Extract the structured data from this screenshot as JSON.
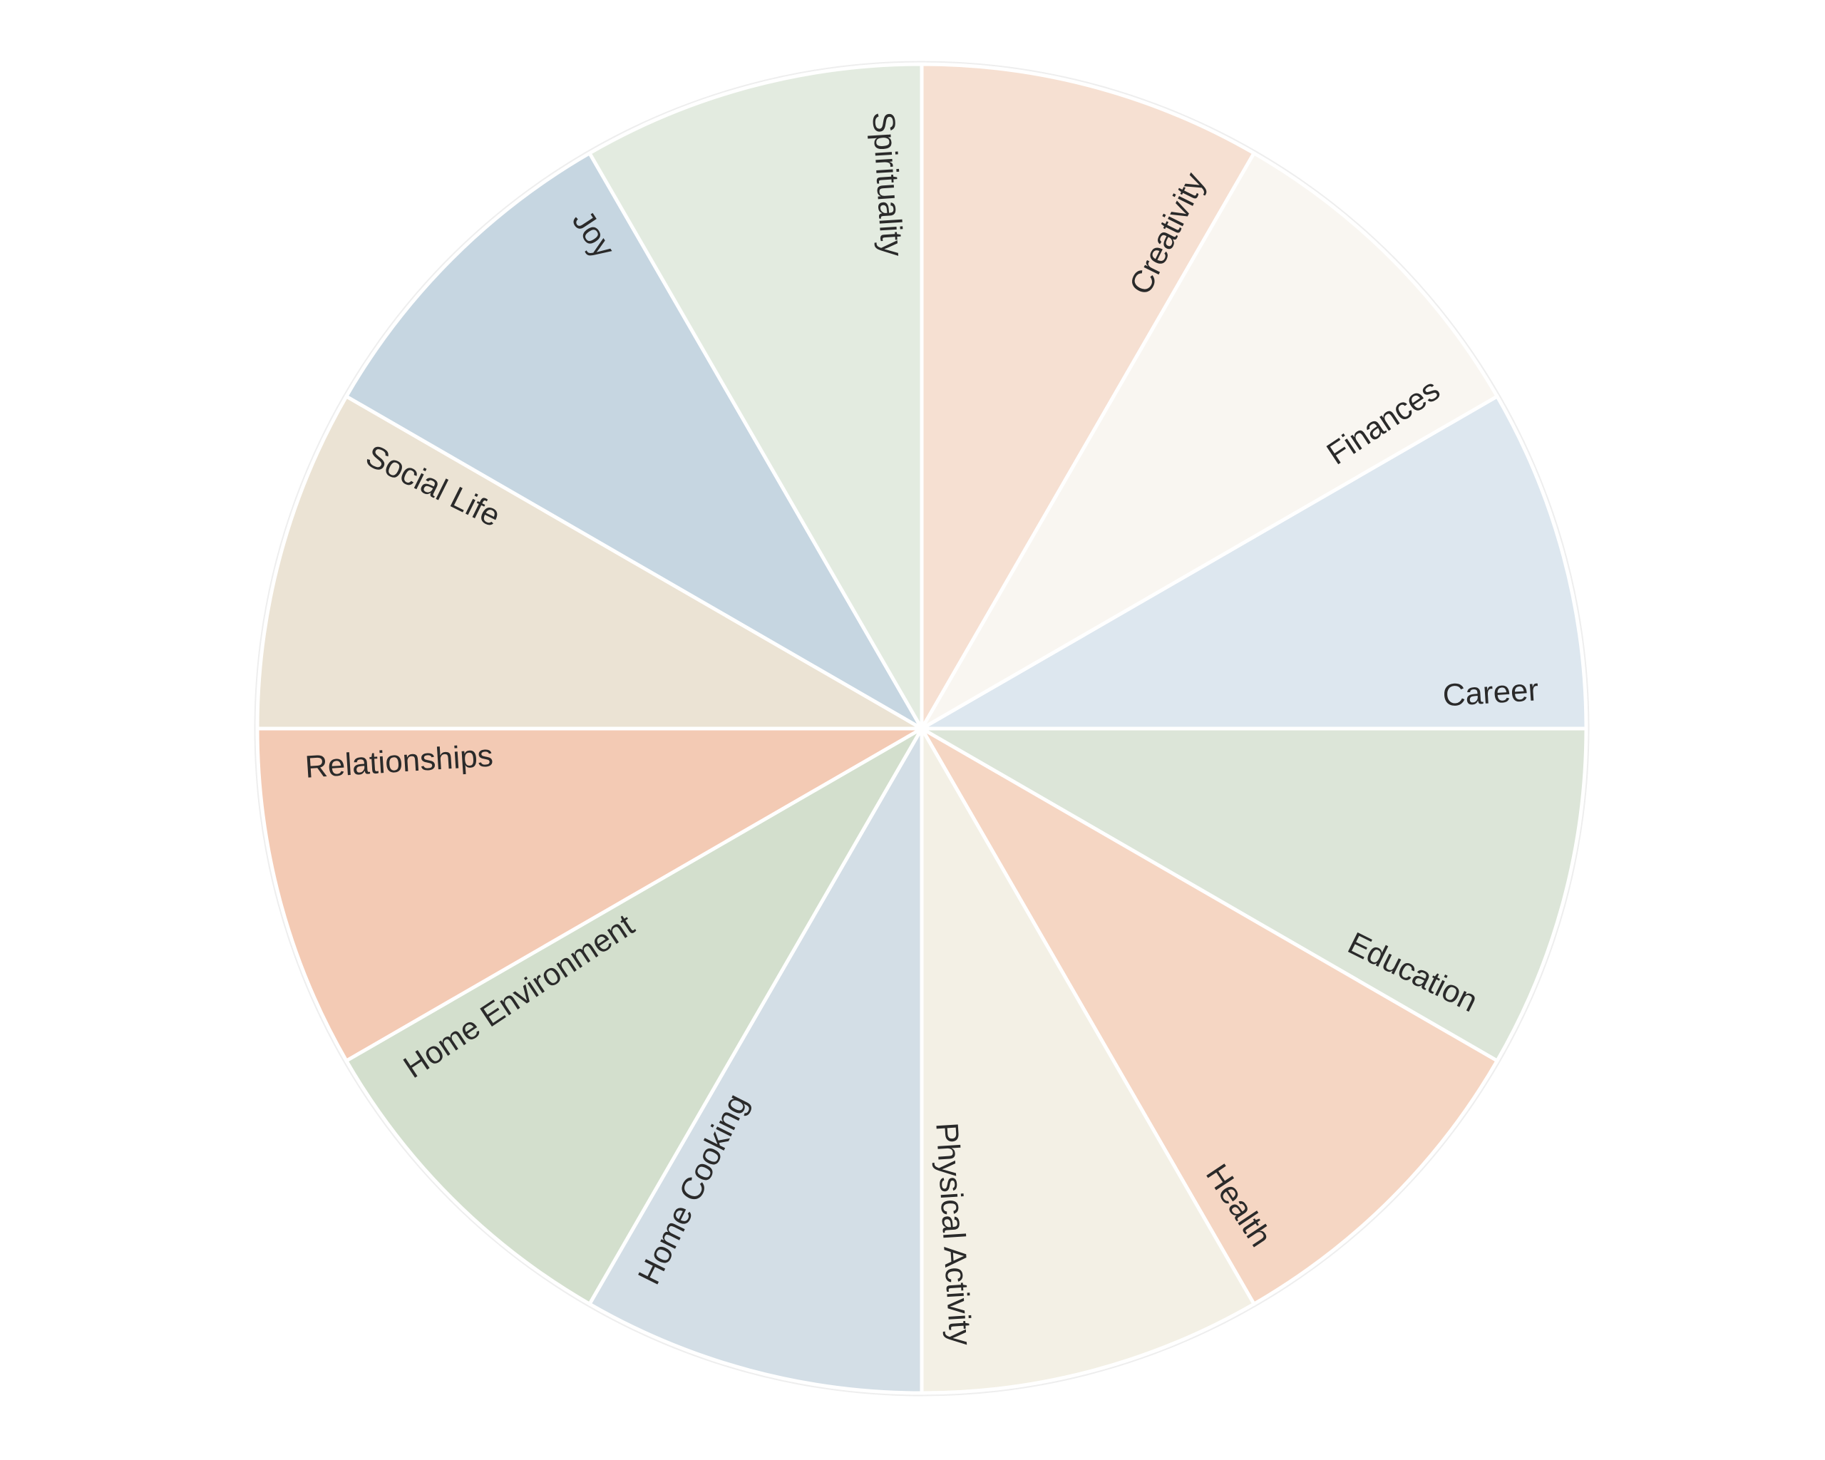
{
  "chart_data": {
    "type": "pie",
    "title": "",
    "start_angle": "right, clockwise from Career",
    "grid": false,
    "legend": "none",
    "categories": [
      "Career",
      "Education",
      "Health",
      "Physical Activity",
      "Home Cooking",
      "Home Environment",
      "Relationships",
      "Social Life",
      "Joy",
      "Spirituality",
      "Creativity",
      "Finances"
    ],
    "values": [
      1,
      1,
      1,
      1,
      1,
      1,
      1,
      1,
      1,
      1,
      1,
      1
    ],
    "colors": [
      "#dde7ef",
      "#dce5d8",
      "#f5d6c3",
      "#f3f0e5",
      "#d3dee6",
      "#d3dfcd",
      "#f3cab4",
      "#ebe3d4",
      "#c6d6e1",
      "#e3ebe0",
      "#f6e0d2",
      "#f9f6f1"
    ]
  }
}
